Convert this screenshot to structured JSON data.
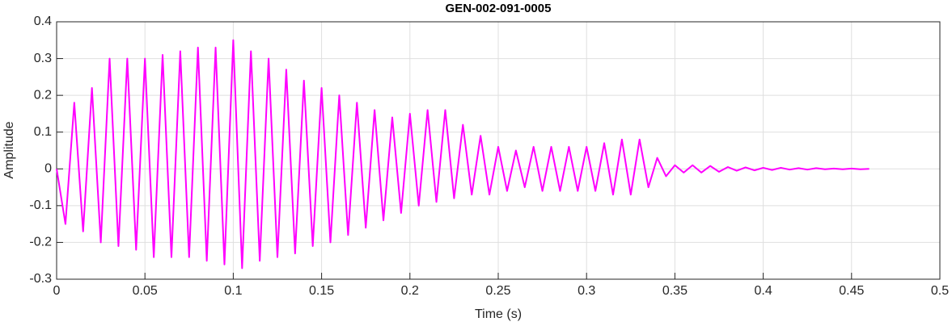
{
  "chart_data": {
    "type": "line",
    "title": "GEN-002-091-0005",
    "x_label": "Time (s)",
    "y_label": "Amplitude",
    "x": [
      0,
      0.005,
      0.01,
      0.015,
      0.02,
      0.025,
      0.03,
      0.035,
      0.04,
      0.045,
      0.05,
      0.055,
      0.06,
      0.065,
      0.07,
      0.075,
      0.08,
      0.085,
      0.09,
      0.095,
      0.1,
      0.105,
      0.11,
      0.115,
      0.12,
      0.125,
      0.13,
      0.135,
      0.14,
      0.145,
      0.15,
      0.155,
      0.16,
      0.165,
      0.17,
      0.175,
      0.18,
      0.185,
      0.19,
      0.195,
      0.2,
      0.205,
      0.21,
      0.215,
      0.22,
      0.225,
      0.23,
      0.235,
      0.24,
      0.245,
      0.25,
      0.255,
      0.26,
      0.265,
      0.27,
      0.275,
      0.28,
      0.285,
      0.29,
      0.295,
      0.3,
      0.305,
      0.31,
      0.315,
      0.32,
      0.325,
      0.33,
      0.335,
      0.34,
      0.345,
      0.35,
      0.355,
      0.36,
      0.365,
      0.37,
      0.375,
      0.38,
      0.385,
      0.39,
      0.395,
      0.4,
      0.405,
      0.41,
      0.415,
      0.42,
      0.425,
      0.43,
      0.435,
      0.44,
      0.445,
      0.45,
      0.455,
      0.46
    ],
    "series": [
      {
        "color": "#ff00ff",
        "values": [
          0,
          -0.15,
          0.18,
          -0.17,
          0.22,
          -0.2,
          0.3,
          -0.21,
          0.3,
          -0.22,
          0.3,
          -0.24,
          0.31,
          -0.24,
          0.32,
          -0.24,
          0.33,
          -0.25,
          0.33,
          -0.26,
          0.35,
          -0.27,
          0.32,
          -0.25,
          0.3,
          -0.24,
          0.27,
          -0.23,
          0.24,
          -0.21,
          0.22,
          -0.2,
          0.2,
          -0.18,
          0.18,
          -0.16,
          0.16,
          -0.14,
          0.14,
          -0.12,
          0.15,
          -0.1,
          0.16,
          -0.09,
          0.16,
          -0.08,
          0.12,
          -0.07,
          0.09,
          -0.07,
          0.06,
          -0.06,
          0.05,
          -0.05,
          0.06,
          -0.06,
          0.06,
          -0.06,
          0.06,
          -0.06,
          0.06,
          -0.06,
          0.07,
          -0.07,
          0.08,
          -0.07,
          0.08,
          -0.05,
          0.03,
          -0.02,
          0.01,
          -0.01,
          0.01,
          -0.01,
          0.008,
          -0.008,
          0.005,
          -0.005,
          0.004,
          -0.004,
          0.003,
          -0.003,
          0.003,
          -0.002,
          0.002,
          -0.002,
          0.002,
          -0.001,
          0.001,
          -0.001,
          0.001,
          -0.001,
          0
        ]
      }
    ],
    "xlim": [
      0,
      0.5
    ],
    "xticks": [
      0,
      0.05,
      0.1,
      0.15,
      0.2,
      0.25,
      0.3,
      0.35,
      0.4,
      0.45,
      0.5
    ],
    "ylim": [
      -0.3,
      0.4
    ],
    "yticks": [
      -0.3,
      -0.2,
      -0.1,
      0,
      0.1,
      0.2,
      0.3,
      0.4
    ],
    "grid": true
  }
}
